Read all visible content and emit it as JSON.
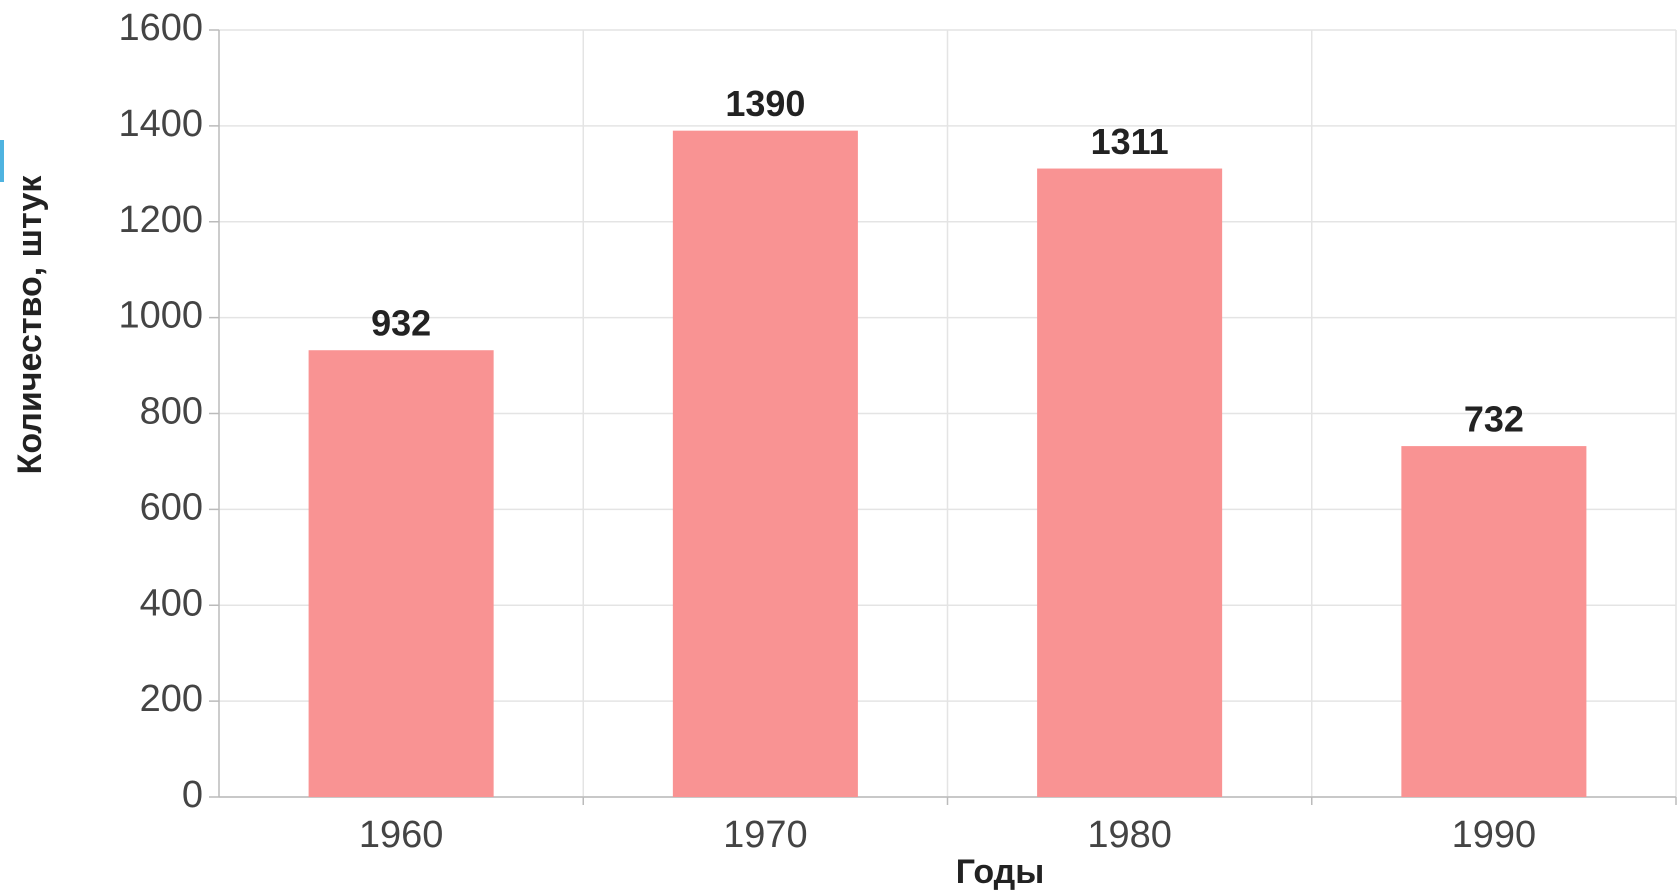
{
  "chart_data": {
    "type": "bar",
    "x_label": "Годы",
    "y_label": "Количество, штук",
    "categories": [
      "1960",
      "1970",
      "1980",
      "1990"
    ],
    "values": [
      932,
      1390,
      1311,
      732
    ],
    "color": "#f99393",
    "ylim": [
      0,
      1600
    ],
    "yticks": [
      0,
      200,
      400,
      600,
      800,
      1000,
      1200,
      1400,
      1600
    ],
    "grid": true
  }
}
